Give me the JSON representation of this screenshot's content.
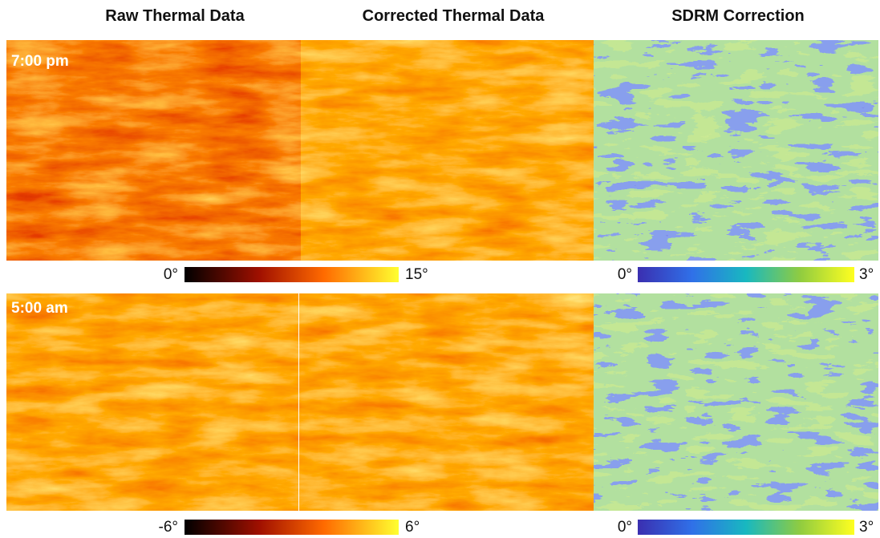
{
  "column_titles": [
    "Raw Thermal Data",
    "Corrected Thermal Data",
    "SDRM Correction"
  ],
  "rows": [
    {
      "label": "7:00 pm",
      "thermal_scale": {
        "min": "0°",
        "max": "15°"
      },
      "sdrm_scale": {
        "min": "0°",
        "max": "3°"
      }
    },
    {
      "label": "5:00 am",
      "thermal_scale": {
        "min": "-6°",
        "max": "6°"
      },
      "sdrm_scale": {
        "min": "0°",
        "max": "3°"
      }
    }
  ]
}
